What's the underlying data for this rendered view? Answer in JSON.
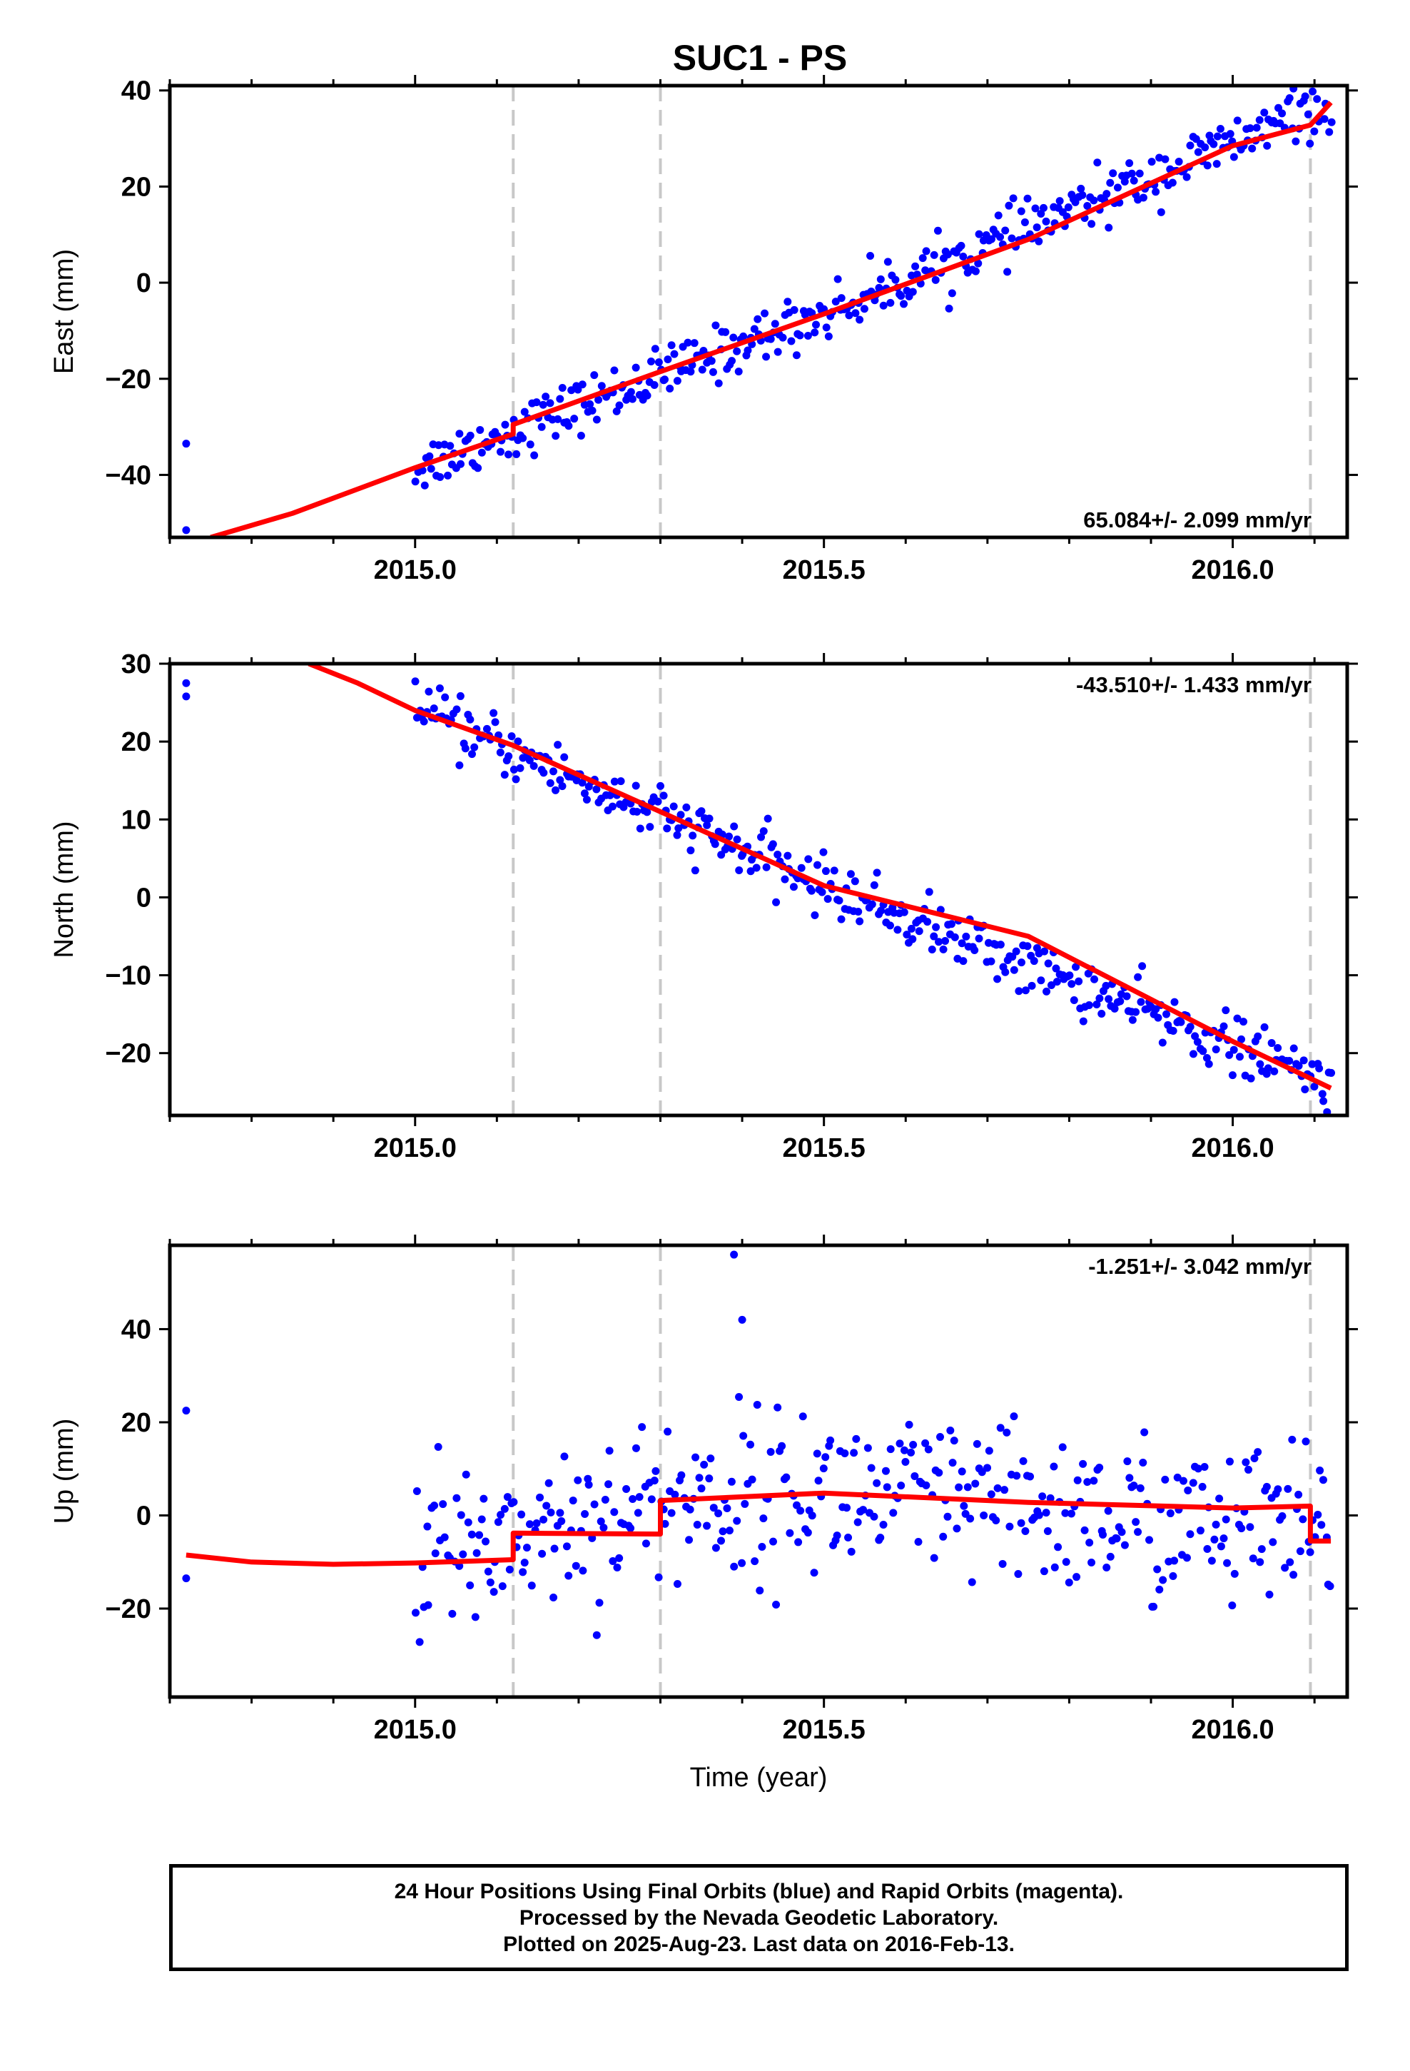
{
  "title": "SUC1 - PS",
  "xlabel": "Time (year)",
  "x_tick_labels": [
    "2015.0",
    "2015.5",
    "2016.0"
  ],
  "footer": {
    "line1": "24 Hour Positions Using Final Orbits (blue) and Rapid Orbits (magenta).",
    "line2": "Processed by the Nevada Geodetic Laboratory.",
    "line3": "Plotted on 2025-Aug-23. Last data on 2016-Feb-13."
  },
  "colors": {
    "data": "#0000ff",
    "model": "#ff0000",
    "breaks": "#c8c8c8"
  },
  "chart_data": [
    {
      "type": "scatter",
      "panel": "east",
      "ylabel": "East (mm)",
      "rate_label": "65.084+/- 2.099 mm/yr",
      "rate_position": "bottom-right",
      "xlim": [
        2014.7,
        2016.14
      ],
      "ylim": [
        -53,
        41
      ],
      "x_ticks": [
        2015.0,
        2015.5,
        2016.0
      ],
      "y_ticks": [
        -40,
        -20,
        0,
        20,
        40
      ],
      "y_tick_labels": [
        "−40",
        "−20",
        "0",
        "20",
        "40"
      ],
      "breaks": [
        2015.12,
        2015.3,
        2016.095
      ],
      "outliers": [
        {
          "x": 2014.72,
          "y": -33.5
        },
        {
          "x": 2014.72,
          "y": -51.5
        }
      ],
      "series": [
        {
          "name": "Final Orbits (blue)",
          "x_range": [
            2015.0,
            2016.12
          ],
          "trend": [
            [
              2015.0,
              -38.5
            ],
            [
              2015.5,
              -6.5
            ],
            [
              2016.12,
              37.5
            ]
          ],
          "scatter_sd": 2.8,
          "count": 400
        },
        {
          "name": "model",
          "points": [
            [
              2014.75,
              -53
            ],
            [
              2014.85,
              -48
            ],
            [
              2015.0,
              -38.5
            ],
            [
              2015.12,
              -31.5
            ],
            [
              2015.12,
              -29.5
            ],
            [
              2015.3,
              -18.5
            ],
            [
              2015.5,
              -6.5
            ],
            [
              2015.75,
              9.0
            ],
            [
              2016.0,
              28.5
            ],
            [
              2016.095,
              32.8
            ],
            [
              2016.12,
              37.5
            ]
          ]
        }
      ]
    },
    {
      "type": "scatter",
      "panel": "north",
      "ylabel": "North (mm)",
      "rate_label": "-43.510+/- 1.433 mm/yr",
      "rate_position": "top-right",
      "xlim": [
        2014.7,
        2016.14
      ],
      "ylim": [
        -28,
        30
      ],
      "x_ticks": [
        2015.0,
        2015.5,
        2016.0
      ],
      "y_ticks": [
        -20,
        -10,
        0,
        10,
        20,
        30
      ],
      "y_tick_labels": [
        "−20",
        "−10",
        "0",
        "10",
        "20",
        "30"
      ],
      "breaks": [
        2015.12,
        2015.3,
        2016.095
      ],
      "outliers": [
        {
          "x": 2014.72,
          "y": 27.5
        },
        {
          "x": 2014.72,
          "y": 25.8
        }
      ],
      "series": [
        {
          "name": "Final Orbits (blue)",
          "x_range": [
            2015.0,
            2016.12
          ],
          "trend": [
            [
              2015.0,
              24.0
            ],
            [
              2015.5,
              1.5
            ],
            [
              2016.12,
              -24.0
            ]
          ],
          "scatter_sd": 1.8,
          "count": 400
        },
        {
          "name": "model",
          "points": [
            [
              2014.87,
              30
            ],
            [
              2014.93,
              27.5
            ],
            [
              2015.0,
              24.0
            ],
            [
              2015.12,
              19.5
            ],
            [
              2015.3,
              11.0
            ],
            [
              2015.5,
              1.5
            ],
            [
              2015.75,
              -5.0
            ],
            [
              2016.0,
              -18.5
            ],
            [
              2016.12,
              -24.5
            ]
          ]
        }
      ]
    },
    {
      "type": "scatter",
      "panel": "up",
      "ylabel": "Up (mm)",
      "rate_label": "-1.251+/- 3.042 mm/yr",
      "rate_position": "top-right",
      "xlim": [
        2014.7,
        2016.14
      ],
      "ylim": [
        -39,
        58
      ],
      "x_ticks": [
        2015.0,
        2015.5,
        2016.0
      ],
      "y_ticks": [
        -20,
        0,
        20,
        40
      ],
      "y_tick_labels": [
        "−20",
        "0",
        "20",
        "40"
      ],
      "breaks": [
        2015.12,
        2015.3,
        2016.095
      ],
      "outliers": [
        {
          "x": 2014.72,
          "y": 22.5
        },
        {
          "x": 2014.72,
          "y": -13.5
        },
        {
          "x": 2015.39,
          "y": 56.0
        },
        {
          "x": 2015.4,
          "y": 42.0
        }
      ],
      "series": [
        {
          "name": "Final Orbits (blue)",
          "x_range": [
            2015.0,
            2016.12
          ],
          "trend": [
            [
              2015.0,
              -9.5
            ],
            [
              2015.12,
              -4.0
            ],
            [
              2015.3,
              3.0
            ],
            [
              2015.5,
              5.0
            ],
            [
              2016.12,
              -5.0
            ]
          ],
          "scatter_sd": 9.0,
          "count": 400
        },
        {
          "name": "model",
          "points": [
            [
              2014.72,
              -8.5
            ],
            [
              2014.8,
              -10.0
            ],
            [
              2014.9,
              -10.5
            ],
            [
              2015.0,
              -10.2
            ],
            [
              2015.12,
              -9.5
            ],
            [
              2015.12,
              -3.8
            ],
            [
              2015.3,
              -4.0
            ],
            [
              2015.3,
              3.2
            ],
            [
              2015.5,
              4.8
            ],
            [
              2015.75,
              2.8
            ],
            [
              2016.0,
              1.6
            ],
            [
              2016.095,
              2.0
            ],
            [
              2016.095,
              -5.5
            ],
            [
              2016.12,
              -5.5
            ]
          ]
        }
      ]
    }
  ]
}
